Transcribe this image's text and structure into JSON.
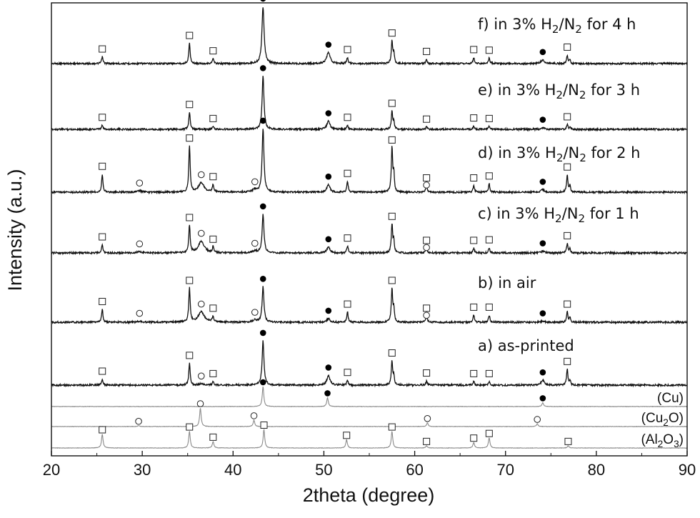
{
  "chart_data": {
    "type": "line",
    "xlabel": "2theta (degree)",
    "ylabel": "Intensity (a.u.)",
    "xlim": [
      20,
      90
    ],
    "x_ticks": [
      20,
      30,
      40,
      50,
      60,
      70,
      80,
      90
    ],
    "grid": false,
    "series": [
      {
        "name": "f) in 3% H2/N2 for 4 h",
        "label_main": "f) in 3% H",
        "label_sub": "2",
        "label_mid": "/N",
        "label_sub2": "2",
        "label_tail": " for 4 h",
        "peaks": [
          {
            "x": 25.6,
            "h": 0.11,
            "w": 0.09,
            "marker": "square"
          },
          {
            "x": 35.2,
            "h": 0.33,
            "w": 0.09,
            "marker": "square"
          },
          {
            "x": 37.8,
            "h": 0.08,
            "w": 0.09,
            "marker": "square"
          },
          {
            "x": 43.3,
            "h": 0.93,
            "w": 0.14,
            "marker": "dot"
          },
          {
            "x": 50.5,
            "h": 0.18,
            "w": 0.22,
            "marker": "dot"
          },
          {
            "x": 52.6,
            "h": 0.1,
            "w": 0.09,
            "marker": "square"
          },
          {
            "x": 57.5,
            "h": 0.37,
            "w": 0.09,
            "marker": "square"
          },
          {
            "x": 57.7,
            "h": 0.18,
            "w": 0.07,
            "marker": "none"
          },
          {
            "x": 61.3,
            "h": 0.07,
            "w": 0.09,
            "marker": "square"
          },
          {
            "x": 66.5,
            "h": 0.1,
            "w": 0.09,
            "marker": "square"
          },
          {
            "x": 68.2,
            "h": 0.09,
            "w": 0.09,
            "marker": "square"
          },
          {
            "x": 74.1,
            "h": 0.06,
            "w": 0.22,
            "marker": "dot"
          },
          {
            "x": 76.8,
            "h": 0.14,
            "w": 0.09,
            "marker": "square"
          },
          {
            "x": 77.1,
            "h": 0.06,
            "w": 0.07,
            "marker": "none"
          }
        ]
      },
      {
        "name": "e) in 3% H2/N2 for 3 h",
        "label_main": "e) in 3% H",
        "label_sub": "2",
        "label_mid": "/N",
        "label_sub2": "2",
        "label_tail": " for 3 h",
        "peaks": [
          {
            "x": 25.6,
            "h": 0.07,
            "w": 0.09,
            "marker": "square"
          },
          {
            "x": 35.2,
            "h": 0.29,
            "w": 0.09,
            "marker": "square"
          },
          {
            "x": 37.8,
            "h": 0.05,
            "w": 0.09,
            "marker": "square"
          },
          {
            "x": 43.3,
            "h": 0.91,
            "w": 0.12,
            "marker": "dot"
          },
          {
            "x": 50.5,
            "h": 0.14,
            "w": 0.2,
            "marker": "dot"
          },
          {
            "x": 52.6,
            "h": 0.07,
            "w": 0.09,
            "marker": "square"
          },
          {
            "x": 57.5,
            "h": 0.31,
            "w": 0.09,
            "marker": "square"
          },
          {
            "x": 57.7,
            "h": 0.12,
            "w": 0.07,
            "marker": "none"
          },
          {
            "x": 61.3,
            "h": 0.04,
            "w": 0.09,
            "marker": "square"
          },
          {
            "x": 66.5,
            "h": 0.06,
            "w": 0.09,
            "marker": "square"
          },
          {
            "x": 68.2,
            "h": 0.05,
            "w": 0.09,
            "marker": "square"
          },
          {
            "x": 74.1,
            "h": 0.03,
            "w": 0.2,
            "marker": "dot"
          },
          {
            "x": 76.8,
            "h": 0.08,
            "w": 0.09,
            "marker": "square"
          },
          {
            "x": 77.1,
            "h": 0.03,
            "w": 0.07,
            "marker": "none"
          }
        ]
      },
      {
        "name": "d) in 3% H2/N2 for 2 h",
        "label_main": "d) in 3% H",
        "label_sub": "2",
        "label_mid": "/N",
        "label_sub2": "2",
        "label_tail": " for 2 h",
        "peaks": [
          {
            "x": 25.6,
            "h": 0.28,
            "w": 0.09,
            "marker": "square"
          },
          {
            "x": 29.7,
            "h": 0.02,
            "w": 0.3,
            "marker": "circle"
          },
          {
            "x": 35.2,
            "h": 0.72,
            "w": 0.09,
            "marker": "square"
          },
          {
            "x": 36.5,
            "h": 0.15,
            "w": 0.35,
            "marker": "circle"
          },
          {
            "x": 37.8,
            "h": 0.12,
            "w": 0.09,
            "marker": "square"
          },
          {
            "x": 42.4,
            "h": 0.04,
            "w": 0.3,
            "marker": "circle"
          },
          {
            "x": 43.3,
            "h": 0.99,
            "w": 0.12,
            "marker": "dot"
          },
          {
            "x": 50.5,
            "h": 0.12,
            "w": 0.2,
            "marker": "dot"
          },
          {
            "x": 52.6,
            "h": 0.17,
            "w": 0.09,
            "marker": "square"
          },
          {
            "x": 57.5,
            "h": 0.69,
            "w": 0.09,
            "marker": "square"
          },
          {
            "x": 57.7,
            "h": 0.28,
            "w": 0.07,
            "marker": "none"
          },
          {
            "x": 61.3,
            "h": 0.1,
            "w": 0.1,
            "marker": "square",
            "marker2": "circle"
          },
          {
            "x": 66.5,
            "h": 0.1,
            "w": 0.09,
            "marker": "square"
          },
          {
            "x": 68.2,
            "h": 0.13,
            "w": 0.09,
            "marker": "square"
          },
          {
            "x": 74.1,
            "h": 0.04,
            "w": 0.2,
            "marker": "dot"
          },
          {
            "x": 76.8,
            "h": 0.27,
            "w": 0.09,
            "marker": "square"
          },
          {
            "x": 77.1,
            "h": 0.1,
            "w": 0.07,
            "marker": "none"
          }
        ]
      },
      {
        "name": "c) in 3% H2/N2 for 1 h",
        "label_main": "c) in 3% H",
        "label_sub": "2",
        "label_mid": "/N",
        "label_sub2": "2",
        "label_tail": " for 1 h",
        "peaks": [
          {
            "x": 25.6,
            "h": 0.14,
            "w": 0.09,
            "marker": "square"
          },
          {
            "x": 29.7,
            "h": 0.02,
            "w": 0.3,
            "marker": "circle"
          },
          {
            "x": 35.2,
            "h": 0.47,
            "w": 0.09,
            "marker": "square"
          },
          {
            "x": 36.5,
            "h": 0.2,
            "w": 0.38,
            "marker": "circle"
          },
          {
            "x": 37.8,
            "h": 0.1,
            "w": 0.09,
            "marker": "square"
          },
          {
            "x": 42.4,
            "h": 0.03,
            "w": 0.3,
            "marker": "circle"
          },
          {
            "x": 43.3,
            "h": 0.66,
            "w": 0.12,
            "marker": "dot"
          },
          {
            "x": 50.5,
            "h": 0.1,
            "w": 0.2,
            "marker": "dot"
          },
          {
            "x": 52.6,
            "h": 0.12,
            "w": 0.09,
            "marker": "square"
          },
          {
            "x": 57.5,
            "h": 0.49,
            "w": 0.09,
            "marker": "square"
          },
          {
            "x": 57.7,
            "h": 0.2,
            "w": 0.07,
            "marker": "none"
          },
          {
            "x": 61.3,
            "h": 0.08,
            "w": 0.1,
            "marker": "square",
            "marker2": "circle"
          },
          {
            "x": 66.5,
            "h": 0.08,
            "w": 0.09,
            "marker": "square"
          },
          {
            "x": 68.2,
            "h": 0.09,
            "w": 0.09,
            "marker": "square"
          },
          {
            "x": 74.1,
            "h": 0.03,
            "w": 0.2,
            "marker": "dot"
          },
          {
            "x": 76.8,
            "h": 0.16,
            "w": 0.09,
            "marker": "square"
          },
          {
            "x": 77.1,
            "h": 0.07,
            "w": 0.07,
            "marker": "none"
          }
        ]
      },
      {
        "name": "b) in air",
        "label_main": "b) in air",
        "label_sub": "",
        "label_mid": "",
        "label_sub2": "",
        "label_tail": "",
        "peaks": [
          {
            "x": 25.6,
            "h": 0.25,
            "w": 0.09,
            "marker": "square"
          },
          {
            "x": 29.7,
            "h": 0.02,
            "w": 0.3,
            "marker": "circle"
          },
          {
            "x": 35.2,
            "h": 0.66,
            "w": 0.09,
            "marker": "square"
          },
          {
            "x": 36.5,
            "h": 0.2,
            "w": 0.4,
            "marker": "circle"
          },
          {
            "x": 37.8,
            "h": 0.12,
            "w": 0.09,
            "marker": "square"
          },
          {
            "x": 42.4,
            "h": 0.04,
            "w": 0.3,
            "marker": "circle"
          },
          {
            "x": 43.3,
            "h": 0.69,
            "w": 0.12,
            "marker": "dot"
          },
          {
            "x": 50.5,
            "h": 0.07,
            "w": 0.2,
            "marker": "dot"
          },
          {
            "x": 52.6,
            "h": 0.2,
            "w": 0.09,
            "marker": "square"
          },
          {
            "x": 57.5,
            "h": 0.66,
            "w": 0.09,
            "marker": "square"
          },
          {
            "x": 57.7,
            "h": 0.25,
            "w": 0.07,
            "marker": "none"
          },
          {
            "x": 61.3,
            "h": 0.12,
            "w": 0.1,
            "marker": "square",
            "marker2": "circle"
          },
          {
            "x": 66.5,
            "h": 0.14,
            "w": 0.09,
            "marker": "square"
          },
          {
            "x": 68.2,
            "h": 0.14,
            "w": 0.09,
            "marker": "square"
          },
          {
            "x": 74.1,
            "h": 0.02,
            "w": 0.2,
            "marker": "dot"
          },
          {
            "x": 76.8,
            "h": 0.2,
            "w": 0.09,
            "marker": "square"
          },
          {
            "x": 77.1,
            "h": 0.1,
            "w": 0.07,
            "marker": "none"
          }
        ]
      },
      {
        "name": "a) as-printed",
        "label_main": "a) as-printed",
        "label_sub": "",
        "label_mid": "",
        "label_sub2": "",
        "label_tail": "",
        "peaks": [
          {
            "x": 25.6,
            "h": 0.1,
            "w": 0.09,
            "marker": "square"
          },
          {
            "x": 35.2,
            "h": 0.36,
            "w": 0.09,
            "marker": "square"
          },
          {
            "x": 36.5,
            "h": 0.02,
            "w": 0.3,
            "marker": "circle"
          },
          {
            "x": 37.8,
            "h": 0.06,
            "w": 0.09,
            "marker": "square"
          },
          {
            "x": 43.3,
            "h": 0.73,
            "w": 0.12,
            "marker": "dot"
          },
          {
            "x": 50.5,
            "h": 0.16,
            "w": 0.2,
            "marker": "dot"
          },
          {
            "x": 52.6,
            "h": 0.08,
            "w": 0.09,
            "marker": "square"
          },
          {
            "x": 57.5,
            "h": 0.4,
            "w": 0.09,
            "marker": "square"
          },
          {
            "x": 57.7,
            "h": 0.15,
            "w": 0.07,
            "marker": "none"
          },
          {
            "x": 61.3,
            "h": 0.07,
            "w": 0.09,
            "marker": "square"
          },
          {
            "x": 66.5,
            "h": 0.06,
            "w": 0.09,
            "marker": "square"
          },
          {
            "x": 68.2,
            "h": 0.06,
            "w": 0.09,
            "marker": "square"
          },
          {
            "x": 74.1,
            "h": 0.08,
            "w": 0.2,
            "marker": "dot"
          },
          {
            "x": 76.8,
            "h": 0.26,
            "w": 0.09,
            "marker": "square"
          },
          {
            "x": 77.1,
            "h": 0.08,
            "w": 0.07,
            "marker": "none"
          }
        ]
      }
    ],
    "references": [
      {
        "name": "(Cu)",
        "label_main": "(Cu)",
        "label_sub": "",
        "label_tail": "",
        "peaks": [
          {
            "x": 43.3,
            "h": 1.0,
            "w": 0.1,
            "marker": "dot"
          },
          {
            "x": 50.4,
            "h": 0.45,
            "w": 0.1,
            "marker": "dot"
          },
          {
            "x": 74.1,
            "h": 0.2,
            "w": 0.1,
            "marker": "dot"
          }
        ]
      },
      {
        "name": "(Cu2O)",
        "label_main": "(Cu",
        "label_sub": "2",
        "label_tail": "O)",
        "peaks": [
          {
            "x": 29.6,
            "h": 0.05,
            "w": 0.1,
            "marker": "circle"
          },
          {
            "x": 36.4,
            "h": 1.0,
            "w": 0.1,
            "marker": "circle"
          },
          {
            "x": 42.3,
            "h": 0.35,
            "w": 0.1,
            "marker": "circle"
          },
          {
            "x": 61.4,
            "h": 0.2,
            "w": 0.1,
            "marker": "circle"
          },
          {
            "x": 73.5,
            "h": 0.15,
            "w": 0.1,
            "marker": "circle"
          }
        ]
      },
      {
        "name": "(Al2O3)",
        "label_main": "(Al",
        "label_sub": "2",
        "label_tail": "O",
        "label_sub2": "3",
        "label_tail2": ")",
        "peaks": [
          {
            "x": 25.6,
            "h": 0.75,
            "w": 0.1,
            "marker": "square"
          },
          {
            "x": 35.2,
            "h": 0.9,
            "w": 0.1,
            "marker": "square"
          },
          {
            "x": 37.8,
            "h": 0.35,
            "w": 0.1,
            "marker": "square"
          },
          {
            "x": 43.4,
            "h": 1.0,
            "w": 0.1,
            "marker": "square"
          },
          {
            "x": 52.5,
            "h": 0.45,
            "w": 0.1,
            "marker": "square"
          },
          {
            "x": 57.5,
            "h": 0.9,
            "w": 0.1,
            "marker": "square"
          },
          {
            "x": 61.3,
            "h": 0.12,
            "w": 0.1,
            "marker": "square"
          },
          {
            "x": 66.5,
            "h": 0.3,
            "w": 0.1,
            "marker": "square"
          },
          {
            "x": 68.2,
            "h": 0.55,
            "w": 0.1,
            "marker": "square"
          },
          {
            "x": 76.9,
            "h": 0.12,
            "w": 0.1,
            "marker": "square"
          }
        ]
      }
    ],
    "colors": {
      "sample_line": "#111111",
      "reference_line": "#8a8a8a",
      "axis": "#111111"
    }
  }
}
